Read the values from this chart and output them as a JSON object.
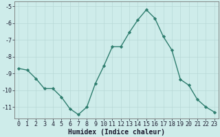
{
  "x": [
    0,
    1,
    2,
    3,
    4,
    5,
    6,
    7,
    8,
    9,
    10,
    11,
    12,
    13,
    14,
    15,
    16,
    17,
    18,
    19,
    20,
    21,
    22,
    23
  ],
  "y": [
    -8.7,
    -8.8,
    -9.3,
    -9.9,
    -9.9,
    -10.4,
    -11.1,
    -11.45,
    -11.0,
    -9.6,
    -8.55,
    -7.4,
    -7.4,
    -6.55,
    -5.8,
    -5.2,
    -5.7,
    -6.8,
    -7.6,
    -9.35,
    -9.7,
    -10.55,
    -11.0,
    -11.3
  ],
  "line_color": "#2e7d6e",
  "marker": "D",
  "markersize": 2.2,
  "linewidth": 1.0,
  "background_color": "#ceecea",
  "grid_color": "#b8d8d6",
  "tick_color": "#1a1a2e",
  "xlabel": "Humidex (Indice chaleur)",
  "xlabel_fontsize": 7,
  "ylabel": "",
  "title": "",
  "xlim": [
    -0.5,
    23.5
  ],
  "ylim": [
    -11.7,
    -4.7
  ],
  "yticks": [
    -11,
    -10,
    -9,
    -8,
    -7,
    -6,
    -5
  ],
  "xticks": [
    0,
    1,
    2,
    3,
    4,
    5,
    6,
    7,
    8,
    9,
    10,
    11,
    12,
    13,
    14,
    15,
    16,
    17,
    18,
    19,
    20,
    21,
    22,
    23
  ],
  "tick_fontsize": 6.0
}
